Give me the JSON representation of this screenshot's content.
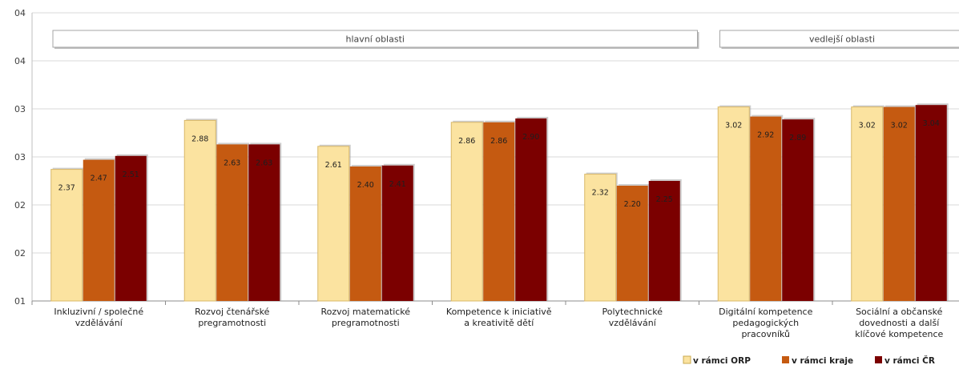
{
  "chart_data": {
    "type": "bar",
    "ylim": [
      1.0,
      4.0
    ],
    "yticks": [
      1.0,
      1.5,
      2.0,
      2.5,
      3.0,
      3.5,
      4.0
    ],
    "ytick_labels": [
      "01",
      "02",
      "02",
      "03",
      "03",
      "04",
      "04"
    ],
    "grid": true,
    "legend_position": "bottom-right",
    "categories": [
      [
        "Inkluzivní / společné",
        "vzdělávání"
      ],
      [
        "Rozvoj čtenářské",
        "pregramotnosti"
      ],
      [
        "Rozvoj matematické",
        "pregramotnosti"
      ],
      [
        "Kompetence k iniciativě",
        "a kreativitě dětí"
      ],
      [
        "Polytechnické",
        "vzdělávání"
      ],
      [
        "Digitální kompetence",
        "pedagogických",
        "pracovníků"
      ],
      [
        "Sociální a občanské",
        "dovednosti a další",
        "klíčové kompetence"
      ]
    ],
    "series": [
      {
        "name": "v rámci ORP",
        "color": "#fbe3a0",
        "values": [
          2.37,
          2.88,
          2.61,
          2.86,
          2.32,
          3.02,
          3.02
        ]
      },
      {
        "name": "v rámci kraje",
        "color": "#c55a11",
        "values": [
          2.47,
          2.63,
          2.4,
          2.86,
          2.2,
          2.92,
          3.02
        ]
      },
      {
        "name": "v rámci ČR",
        "color": "#7b0000",
        "values": [
          2.51,
          2.63,
          2.41,
          2.9,
          2.25,
          2.89,
          3.04
        ]
      }
    ],
    "value_labels": [
      [
        "2.37",
        "2.88",
        "2.61",
        "2.86",
        "2.32",
        "3.02",
        "3.02"
      ],
      [
        "2.47",
        "2.63",
        "2.40",
        "2.86",
        "2.20",
        "2.92",
        "3.02"
      ],
      [
        "2.51",
        "2.63",
        "2.41",
        "2.90",
        "2.25",
        "2.89",
        "3.04"
      ]
    ],
    "group_boxes": [
      {
        "label": "hlavní oblasti",
        "categories": [
          0,
          4
        ]
      },
      {
        "label": "vedlejší oblasti",
        "categories": [
          5,
          6
        ]
      }
    ]
  }
}
